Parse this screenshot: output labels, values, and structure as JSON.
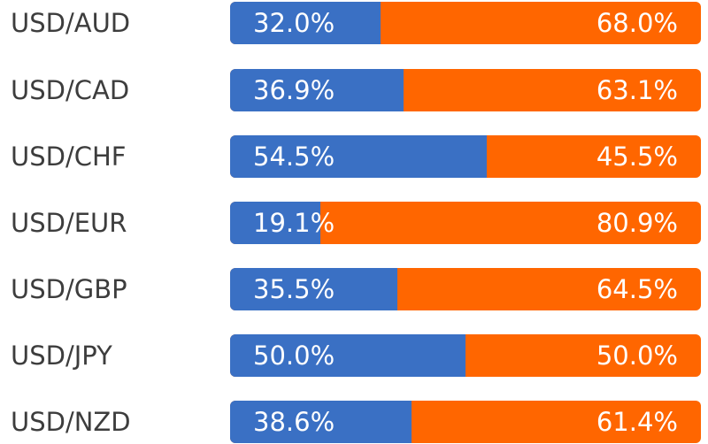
{
  "colors": {
    "long": "#3a70c4",
    "short": "#ff6600"
  },
  "chart_data": {
    "type": "bar",
    "stacked": true,
    "orientation": "horizontal",
    "categories": [
      "USD/AUD",
      "USD/CAD",
      "USD/CHF",
      "USD/EUR",
      "USD/GBP",
      "USD/JPY",
      "USD/NZD"
    ],
    "series": [
      {
        "values": [
          32.0,
          36.9,
          54.5,
          19.1,
          35.5,
          50.0,
          38.6
        ],
        "labels": [
          "32.0%",
          "36.9%",
          "54.5%",
          "19.1%",
          "35.5%",
          "50.0%",
          "38.6%"
        ]
      },
      {
        "values": [
          68.0,
          63.1,
          45.5,
          80.9,
          64.5,
          50.0,
          61.4
        ],
        "labels": [
          "68.0%",
          "63.1%",
          "45.5%",
          "80.9%",
          "64.5%",
          "50.0%",
          "61.4%"
        ]
      }
    ],
    "xlim": [
      0,
      100
    ],
    "grid": false
  }
}
